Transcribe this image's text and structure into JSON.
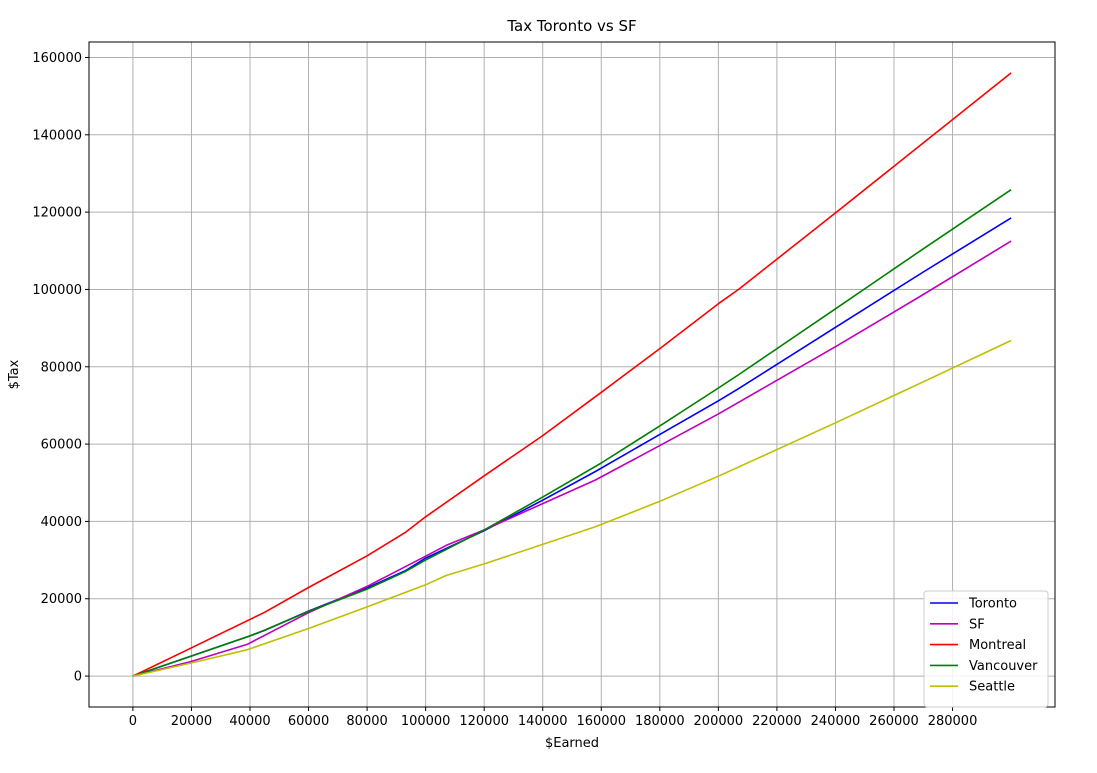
{
  "chart_data": {
    "type": "line",
    "title": "Tax Toronto vs SF",
    "xlabel": "$Earned",
    "ylabel": "$Tax",
    "xlim": [
      -15000,
      315000
    ],
    "ylim": [
      -8000,
      164000
    ],
    "xticks": [
      0,
      20000,
      40000,
      60000,
      80000,
      100000,
      120000,
      140000,
      160000,
      180000,
      200000,
      220000,
      240000,
      260000,
      280000
    ],
    "yticks": [
      0,
      20000,
      40000,
      60000,
      80000,
      100000,
      120000,
      140000,
      160000
    ],
    "grid": true,
    "legend_position": "bottom-right",
    "series": [
      {
        "name": "Toronto",
        "color": "#0000ff",
        "x": [
          0,
          20000,
          40000,
          45000,
          60000,
          80000,
          93000,
          100000,
          120000,
          140000,
          158000,
          180000,
          200000,
          207000,
          240000,
          270000,
          300000
        ],
        "y": [
          0,
          5200,
          10400,
          11800,
          16800,
          22800,
          27200,
          30500,
          37600,
          45500,
          52900,
          62500,
          71200,
          74400,
          90200,
          104500,
          118500
        ]
      },
      {
        "name": "SF",
        "color": "#bf00bf",
        "x": [
          0,
          20000,
          39000,
          60000,
          80000,
          100000,
          107000,
          120000,
          140000,
          158000,
          180000,
          200000,
          240000,
          270000,
          300000
        ],
        "y": [
          0,
          3800,
          8200,
          16400,
          23200,
          31000,
          33800,
          37800,
          44600,
          50700,
          59600,
          67800,
          85200,
          98700,
          112500
        ]
      },
      {
        "name": "Montreal",
        "color": "#ff0000",
        "x": [
          0,
          20000,
          45000,
          60000,
          80000,
          93000,
          100000,
          120000,
          140000,
          160000,
          180000,
          200000,
          207000,
          240000,
          270000,
          300000
        ],
        "y": [
          0,
          7300,
          16500,
          22900,
          31100,
          37100,
          41200,
          51800,
          62200,
          73400,
          84700,
          96300,
          100100,
          119800,
          137900,
          156000
        ]
      },
      {
        "name": "Vancouver",
        "color": "#008000",
        "x": [
          0,
          20000,
          40000,
          45000,
          60000,
          80000,
          93000,
          100000,
          120000,
          140000,
          160000,
          180000,
          200000,
          207000,
          240000,
          270000,
          300000
        ],
        "y": [
          0,
          5200,
          10400,
          11900,
          16700,
          22500,
          27000,
          30000,
          37800,
          46300,
          55100,
          64700,
          74500,
          78000,
          95000,
          110500,
          125800
        ]
      },
      {
        "name": "Seattle",
        "color": "#bfbf00",
        "x": [
          0,
          20000,
          39000,
          60000,
          80000,
          100000,
          107000,
          120000,
          158000,
          180000,
          200000,
          240000,
          270000,
          300000
        ],
        "y": [
          0,
          3400,
          6800,
          12300,
          17900,
          23600,
          26000,
          29000,
          38600,
          45200,
          51700,
          65500,
          76100,
          86800
        ]
      }
    ]
  }
}
